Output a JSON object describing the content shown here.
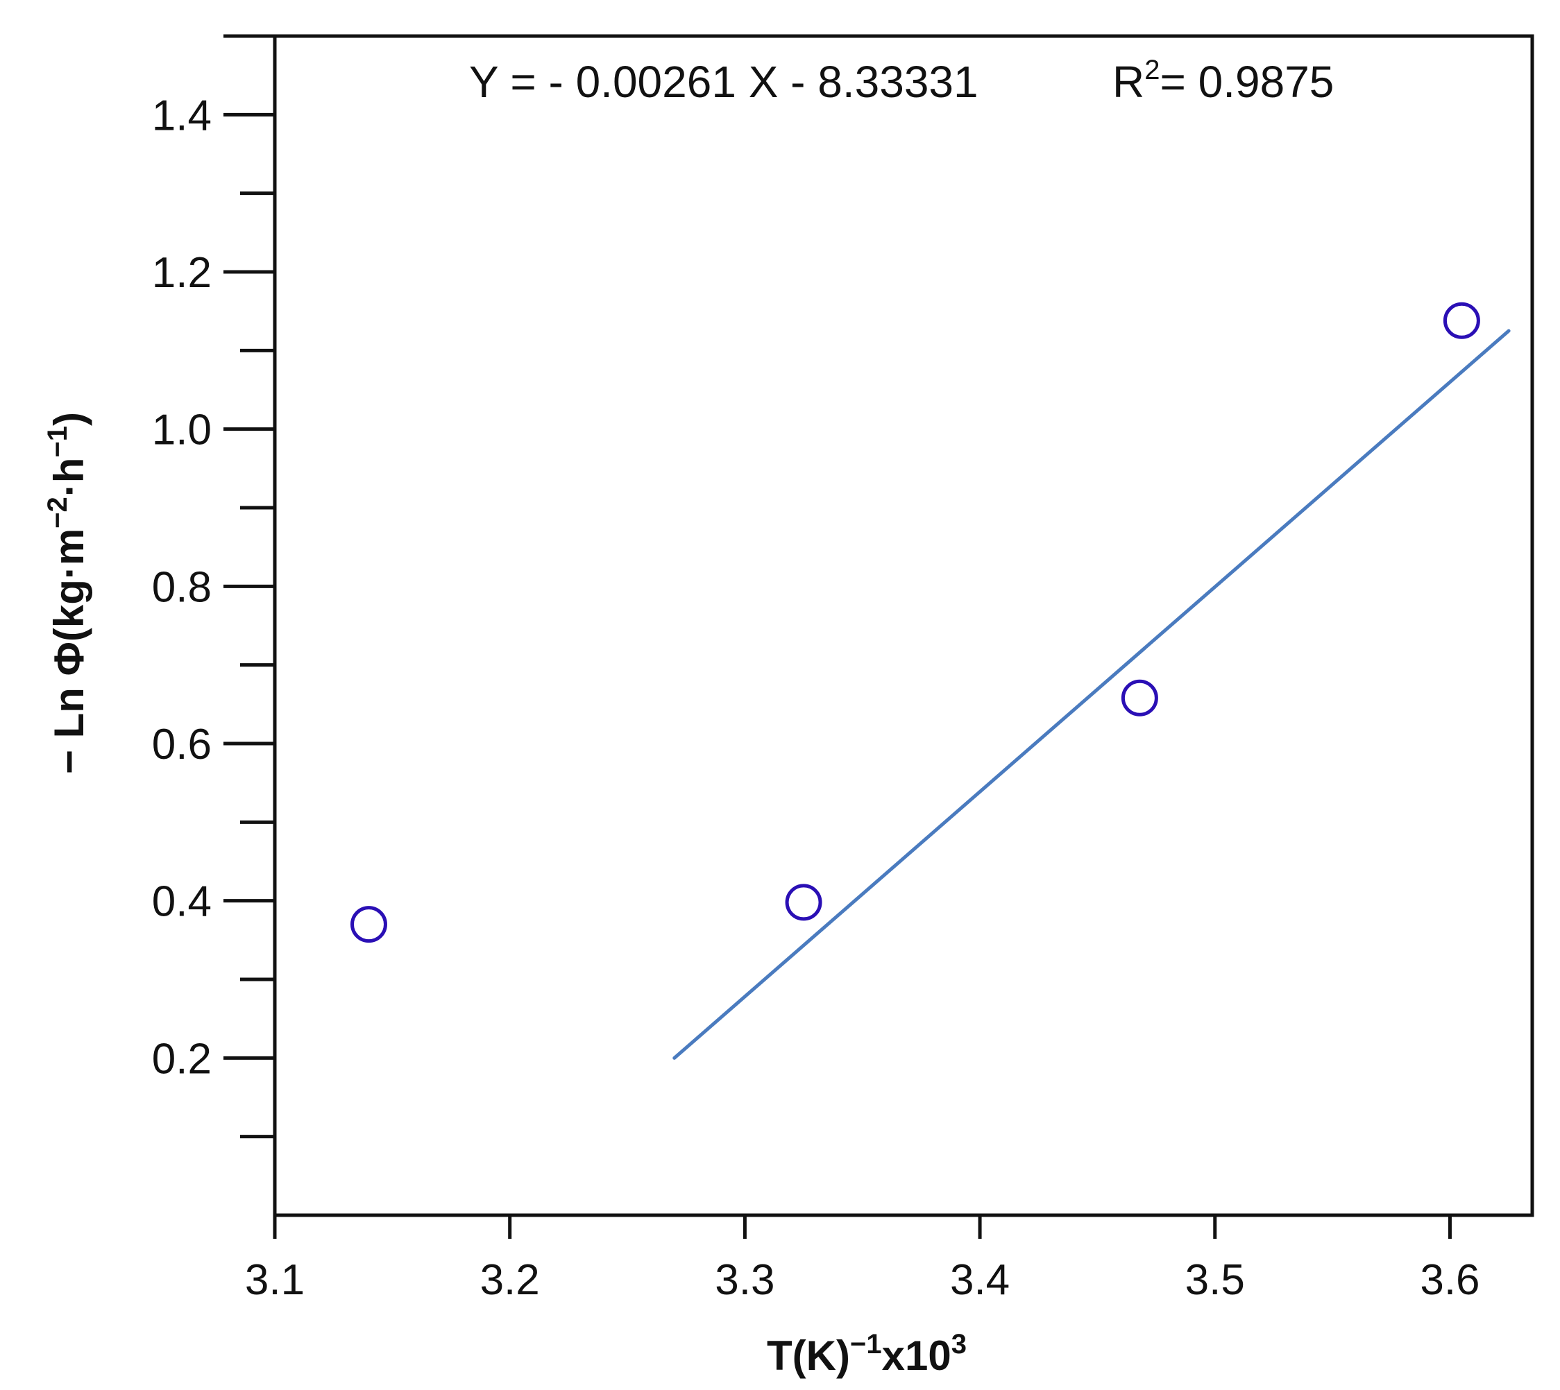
{
  "chart_data": {
    "type": "scatter",
    "title": "",
    "xlabel": {
      "base": "T(K)",
      "sup1": "−1",
      "mid": "x10",
      "sup2": "3"
    },
    "ylabel": {
      "part1": "− Ln Φ(kg·m",
      "sup1": "−2",
      "part2": "·h",
      "sup2": "−1",
      "part3": ")"
    },
    "xlim": [
      3.1,
      3.635
    ],
    "ylim": [
      0.0,
      1.5
    ],
    "x_ticks": [
      3.1,
      3.2,
      3.3,
      3.4,
      3.5,
      3.6
    ],
    "x_tick_labels": [
      "3.1",
      "3.2",
      "3.3",
      "3.4",
      "3.5",
      "3.6"
    ],
    "y_major_ticks": [
      0.2,
      0.4,
      0.6,
      0.8,
      1.0,
      1.2,
      1.4
    ],
    "y_tick_labels": [
      "0.2",
      "0.4",
      "0.6",
      "0.8",
      "1.0",
      "1.2",
      "1.4"
    ],
    "y_minor_ticks": [
      0.1,
      0.3,
      0.5,
      0.7,
      0.9,
      1.1,
      1.3,
      1.5
    ],
    "grid": false,
    "series": [
      {
        "type": "scatter",
        "marker": "open-circle",
        "color": "#2a0fb5",
        "x": [
          3.14,
          3.325,
          3.468,
          3.605
        ],
        "y": [
          0.37,
          0.398,
          0.658,
          1.138
        ]
      },
      {
        "type": "line",
        "color": "#4a7bbf",
        "x": [
          3.27,
          3.625
        ],
        "y": [
          0.2,
          1.125
        ]
      }
    ],
    "annotations": {
      "equation": "Y = - 0.00261 X - 8.33331",
      "r2_prefix": "R",
      "r2_sup": "2",
      "r2_value": "= 0.9875"
    }
  }
}
